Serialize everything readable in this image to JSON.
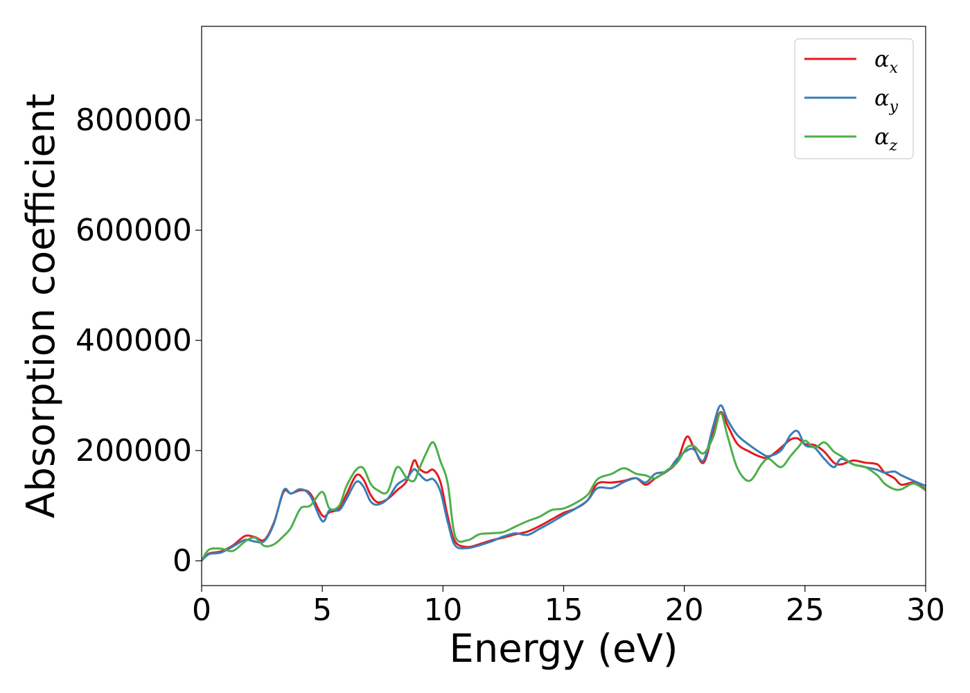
{
  "chart_data": {
    "type": "line",
    "title": "",
    "xlabel": "Energy (eV)",
    "ylabel": "Absorption coefficient",
    "xlim": [
      0,
      30
    ],
    "ylim": [
      -45000,
      970000
    ],
    "xticks": [
      0,
      5,
      10,
      15,
      20,
      25,
      30
    ],
    "yticks": [
      0,
      200000,
      400000,
      600000,
      800000
    ],
    "grid": false,
    "legend_position": "top-right",
    "series": [
      {
        "name": "α",
        "subscript": "x",
        "color": "#e41a1c",
        "points": [
          [
            0,
            0
          ],
          [
            0.3,
            13000
          ],
          [
            0.8,
            17000
          ],
          [
            1.3,
            28000
          ],
          [
            1.8,
            45000
          ],
          [
            2.2,
            43000
          ],
          [
            2.6,
            38000
          ],
          [
            3.0,
            70000
          ],
          [
            3.4,
            125000
          ],
          [
            3.7,
            122000
          ],
          [
            4.1,
            128000
          ],
          [
            4.5,
            122000
          ],
          [
            5.0,
            82000
          ],
          [
            5.3,
            88000
          ],
          [
            5.7,
            95000
          ],
          [
            6.0,
            120000
          ],
          [
            6.4,
            155000
          ],
          [
            6.7,
            148000
          ],
          [
            7.0,
            120000
          ],
          [
            7.3,
            106000
          ],
          [
            7.7,
            112000
          ],
          [
            8.1,
            128000
          ],
          [
            8.5,
            145000
          ],
          [
            8.8,
            182000
          ],
          [
            9.0,
            168000
          ],
          [
            9.3,
            160000
          ],
          [
            9.6,
            165000
          ],
          [
            9.9,
            142000
          ],
          [
            10.2,
            80000
          ],
          [
            10.5,
            35000
          ],
          [
            11.0,
            25000
          ],
          [
            11.5,
            30000
          ],
          [
            12.0,
            37000
          ],
          [
            12.5,
            42000
          ],
          [
            13.0,
            48000
          ],
          [
            13.5,
            53000
          ],
          [
            14.0,
            63000
          ],
          [
            14.5,
            75000
          ],
          [
            15.0,
            87000
          ],
          [
            15.5,
            95000
          ],
          [
            16.0,
            110000
          ],
          [
            16.4,
            140000
          ],
          [
            17.0,
            142000
          ],
          [
            17.5,
            145000
          ],
          [
            18.0,
            150000
          ],
          [
            18.4,
            138000
          ],
          [
            18.8,
            150000
          ],
          [
            19.3,
            163000
          ],
          [
            19.7,
            180000
          ],
          [
            20.1,
            225000
          ],
          [
            20.4,
            205000
          ],
          [
            20.8,
            178000
          ],
          [
            21.2,
            235000
          ],
          [
            21.5,
            270000
          ],
          [
            21.8,
            245000
          ],
          [
            22.2,
            212000
          ],
          [
            22.7,
            198000
          ],
          [
            23.2,
            188000
          ],
          [
            23.5,
            188000
          ],
          [
            24.0,
            205000
          ],
          [
            24.4,
            220000
          ],
          [
            24.7,
            222000
          ],
          [
            25.0,
            212000
          ],
          [
            25.4,
            210000
          ],
          [
            25.8,
            198000
          ],
          [
            26.2,
            178000
          ],
          [
            26.5,
            175000
          ],
          [
            27.0,
            182000
          ],
          [
            27.5,
            178000
          ],
          [
            28.0,
            175000
          ],
          [
            28.3,
            160000
          ],
          [
            28.7,
            150000
          ],
          [
            29.0,
            138000
          ],
          [
            29.5,
            142000
          ],
          [
            30,
            130000
          ]
        ]
      },
      {
        "name": "α",
        "subscript": "y",
        "color": "#377eb8",
        "points": [
          [
            0,
            0
          ],
          [
            0.3,
            12000
          ],
          [
            0.8,
            15000
          ],
          [
            1.3,
            26000
          ],
          [
            1.8,
            38000
          ],
          [
            2.2,
            35000
          ],
          [
            2.6,
            36000
          ],
          [
            3.0,
            68000
          ],
          [
            3.4,
            128000
          ],
          [
            3.7,
            122000
          ],
          [
            4.1,
            130000
          ],
          [
            4.5,
            118000
          ],
          [
            5.0,
            72000
          ],
          [
            5.3,
            92000
          ],
          [
            5.7,
            92000
          ],
          [
            6.0,
            112000
          ],
          [
            6.4,
            143000
          ],
          [
            6.7,
            135000
          ],
          [
            7.0,
            108000
          ],
          [
            7.3,
            102000
          ],
          [
            7.7,
            112000
          ],
          [
            8.1,
            138000
          ],
          [
            8.5,
            150000
          ],
          [
            8.8,
            166000
          ],
          [
            9.0,
            158000
          ],
          [
            9.3,
            146000
          ],
          [
            9.6,
            148000
          ],
          [
            9.9,
            125000
          ],
          [
            10.2,
            70000
          ],
          [
            10.5,
            28000
          ],
          [
            11.0,
            23000
          ],
          [
            11.5,
            28000
          ],
          [
            12.0,
            35000
          ],
          [
            12.5,
            44000
          ],
          [
            13.0,
            50000
          ],
          [
            13.5,
            47000
          ],
          [
            14.0,
            58000
          ],
          [
            14.5,
            70000
          ],
          [
            15.0,
            83000
          ],
          [
            15.5,
            95000
          ],
          [
            16.0,
            110000
          ],
          [
            16.4,
            132000
          ],
          [
            17.0,
            132000
          ],
          [
            17.5,
            143000
          ],
          [
            18.0,
            150000
          ],
          [
            18.4,
            142000
          ],
          [
            18.8,
            158000
          ],
          [
            19.3,
            163000
          ],
          [
            19.7,
            185000
          ],
          [
            20.1,
            200000
          ],
          [
            20.4,
            202000
          ],
          [
            20.8,
            182000
          ],
          [
            21.2,
            245000
          ],
          [
            21.5,
            282000
          ],
          [
            21.8,
            255000
          ],
          [
            22.2,
            228000
          ],
          [
            22.7,
            210000
          ],
          [
            23.2,
            195000
          ],
          [
            23.5,
            190000
          ],
          [
            24.0,
            200000
          ],
          [
            24.4,
            228000
          ],
          [
            24.7,
            235000
          ],
          [
            25.0,
            210000
          ],
          [
            25.4,
            205000
          ],
          [
            25.8,
            185000
          ],
          [
            26.2,
            170000
          ],
          [
            26.5,
            185000
          ],
          [
            27.0,
            175000
          ],
          [
            27.5,
            170000
          ],
          [
            28.0,
            165000
          ],
          [
            28.3,
            160000
          ],
          [
            28.7,
            162000
          ],
          [
            29.0,
            155000
          ],
          [
            29.5,
            145000
          ],
          [
            30,
            136000
          ]
        ]
      },
      {
        "name": "α",
        "subscript": "z",
        "color": "#4daf4a",
        "points": [
          [
            0,
            0
          ],
          [
            0.3,
            20000
          ],
          [
            0.8,
            22000
          ],
          [
            1.3,
            18000
          ],
          [
            1.8,
            35000
          ],
          [
            2.2,
            42000
          ],
          [
            2.6,
            27000
          ],
          [
            3.0,
            30000
          ],
          [
            3.4,
            45000
          ],
          [
            3.7,
            60000
          ],
          [
            4.1,
            95000
          ],
          [
            4.5,
            100000
          ],
          [
            5.0,
            125000
          ],
          [
            5.3,
            95000
          ],
          [
            5.7,
            100000
          ],
          [
            6.0,
            135000
          ],
          [
            6.4,
            165000
          ],
          [
            6.7,
            168000
          ],
          [
            7.0,
            140000
          ],
          [
            7.3,
            128000
          ],
          [
            7.7,
            125000
          ],
          [
            8.1,
            170000
          ],
          [
            8.5,
            150000
          ],
          [
            8.8,
            145000
          ],
          [
            9.0,
            165000
          ],
          [
            9.3,
            195000
          ],
          [
            9.6,
            215000
          ],
          [
            9.9,
            180000
          ],
          [
            10.2,
            140000
          ],
          [
            10.5,
            45000
          ],
          [
            11.0,
            37000
          ],
          [
            11.5,
            48000
          ],
          [
            12.0,
            50000
          ],
          [
            12.5,
            52000
          ],
          [
            13.0,
            62000
          ],
          [
            13.5,
            72000
          ],
          [
            14.0,
            80000
          ],
          [
            14.5,
            92000
          ],
          [
            15.0,
            95000
          ],
          [
            15.5,
            105000
          ],
          [
            16.0,
            120000
          ],
          [
            16.4,
            148000
          ],
          [
            17.0,
            158000
          ],
          [
            17.5,
            168000
          ],
          [
            18.0,
            158000
          ],
          [
            18.4,
            155000
          ],
          [
            18.8,
            150000
          ],
          [
            19.3,
            165000
          ],
          [
            19.7,
            178000
          ],
          [
            20.1,
            205000
          ],
          [
            20.4,
            208000
          ],
          [
            20.8,
            195000
          ],
          [
            21.2,
            225000
          ],
          [
            21.5,
            268000
          ],
          [
            21.8,
            225000
          ],
          [
            22.2,
            168000
          ],
          [
            22.7,
            145000
          ],
          [
            23.2,
            175000
          ],
          [
            23.5,
            185000
          ],
          [
            24.0,
            170000
          ],
          [
            24.4,
            190000
          ],
          [
            24.7,
            205000
          ],
          [
            25.0,
            218000
          ],
          [
            25.4,
            205000
          ],
          [
            25.8,
            215000
          ],
          [
            26.2,
            198000
          ],
          [
            26.5,
            190000
          ],
          [
            27.0,
            175000
          ],
          [
            27.5,
            170000
          ],
          [
            28.0,
            155000
          ],
          [
            28.3,
            140000
          ],
          [
            28.7,
            130000
          ],
          [
            29.0,
            130000
          ],
          [
            29.5,
            140000
          ],
          [
            30,
            128000
          ]
        ]
      }
    ]
  }
}
